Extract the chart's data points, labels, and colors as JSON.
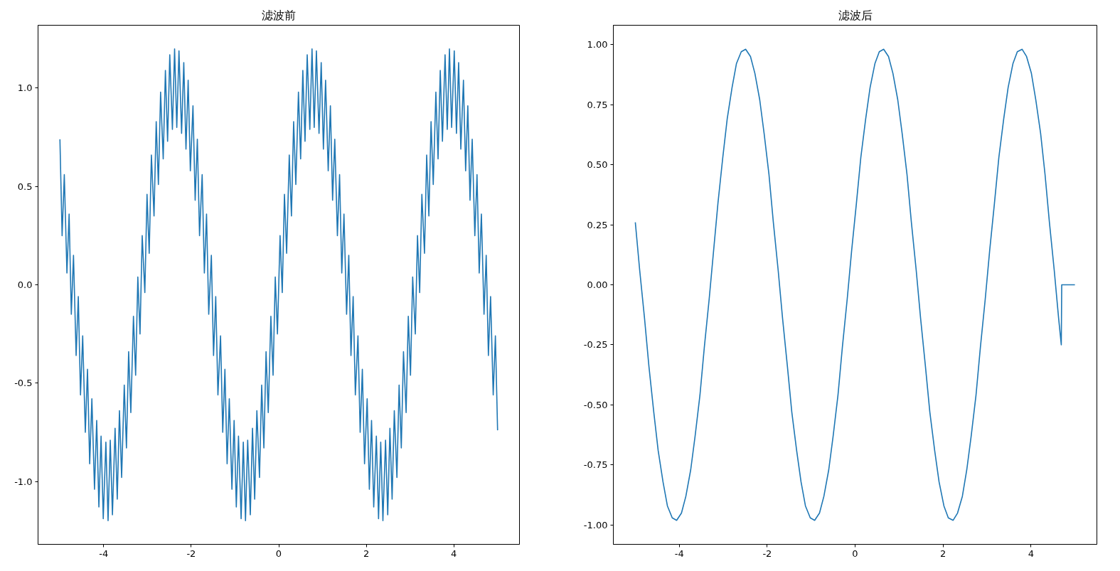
{
  "chart_data": [
    {
      "type": "line",
      "title": "滤波前",
      "xlim": [
        -5.5,
        5.5
      ],
      "ylim": [
        -1.32,
        1.32
      ],
      "xticks": [
        -4,
        -2,
        0,
        2,
        4
      ],
      "yticks": [
        {
          "value": -1.0,
          "label": "-1.0"
        },
        {
          "value": -0.5,
          "label": "-0.5"
        },
        {
          "value": 0.0,
          "label": "0.0"
        },
        {
          "value": 0.5,
          "label": "0.5"
        },
        {
          "value": 1.0,
          "label": "1.0"
        }
      ],
      "x": [
        -5.0,
        -4.95,
        -4.9,
        -4.84,
        -4.79,
        -4.74,
        -4.69,
        -4.63,
        -4.58,
        -4.53,
        -4.48,
        -4.42,
        -4.37,
        -4.32,
        -4.27,
        -4.21,
        -4.16,
        -4.11,
        -4.06,
        -4.01,
        -3.95,
        -3.9,
        -3.85,
        -3.8,
        -3.74,
        -3.69,
        -3.64,
        -3.59,
        -3.53,
        -3.48,
        -3.43,
        -3.38,
        -3.32,
        -3.27,
        -3.22,
        -3.17,
        -3.12,
        -3.06,
        -3.01,
        -2.96,
        -2.91,
        -2.85,
        -2.8,
        -2.75,
        -2.7,
        -2.64,
        -2.59,
        -2.54,
        -2.49,
        -2.43,
        -2.38,
        -2.33,
        -2.28,
        -2.22,
        -2.17,
        -2.12,
        -2.07,
        -2.02,
        -1.96,
        -1.91,
        -1.86,
        -1.81,
        -1.75,
        -1.7,
        -1.65,
        -1.6,
        -1.54,
        -1.49,
        -1.44,
        -1.39,
        -1.33,
        -1.28,
        -1.23,
        -1.18,
        -1.13,
        -1.07,
        -1.02,
        -0.97,
        -0.92,
        -0.86,
        -0.81,
        -0.76,
        -0.71,
        -0.65,
        -0.6,
        -0.55,
        -0.5,
        -0.44,
        -0.39,
        -0.34,
        -0.29,
        -0.24,
        -0.18,
        -0.13,
        -0.08,
        -0.03,
        0.03,
        0.08,
        0.13,
        0.18,
        0.24,
        0.29,
        0.34,
        0.39,
        0.45,
        0.5,
        0.55,
        0.6,
        0.65,
        0.71,
        0.76,
        0.81,
        0.86,
        0.92,
        0.97,
        1.02,
        1.07,
        1.13,
        1.18,
        1.23,
        1.28,
        1.34,
        1.39,
        1.44,
        1.49,
        1.55,
        1.6,
        1.65,
        1.7,
        1.75,
        1.81,
        1.86,
        1.91,
        1.96,
        2.02,
        2.07,
        2.12,
        2.17,
        2.23,
        2.28,
        2.33,
        2.38,
        2.44,
        2.49,
        2.54,
        2.59,
        2.64,
        2.7,
        2.75,
        2.8,
        2.85,
        2.91,
        2.96,
        3.01,
        3.06,
        3.12,
        3.17,
        3.22,
        3.27,
        3.33,
        3.38,
        3.43,
        3.48,
        3.53,
        3.59,
        3.64,
        3.69,
        3.74,
        3.8,
        3.85,
        3.9,
        3.95,
        4.01,
        4.06,
        4.11,
        4.16,
        4.22,
        4.27,
        4.32,
        4.37,
        4.42,
        4.48,
        4.53,
        4.58,
        4.63,
        4.69,
        4.74,
        4.79,
        4.84,
        4.9,
        4.95,
        5.0
      ],
      "series": [
        {
          "color": "#1f77b4",
          "values": [
            0.74,
            0.25,
            0.56,
            0.06,
            0.36,
            -0.15,
            0.15,
            -0.36,
            -0.06,
            -0.56,
            -0.26,
            -0.75,
            -0.43,
            -0.91,
            -0.58,
            -1.04,
            -0.69,
            -1.13,
            -0.77,
            -1.19,
            -0.8,
            -1.2,
            -0.79,
            -1.17,
            -0.73,
            -1.09,
            -0.64,
            -0.98,
            -0.51,
            -0.83,
            -0.34,
            -0.65,
            -0.16,
            -0.46,
            0.04,
            -0.25,
            0.25,
            -0.04,
            0.46,
            0.16,
            0.66,
            0.35,
            0.83,
            0.51,
            0.98,
            0.64,
            1.09,
            0.73,
            1.17,
            0.79,
            1.2,
            0.8,
            1.19,
            0.77,
            1.13,
            0.69,
            1.04,
            0.58,
            0.91,
            0.43,
            0.74,
            0.25,
            0.56,
            0.06,
            0.36,
            -0.15,
            0.15,
            -0.36,
            -0.06,
            -0.56,
            -0.26,
            -0.75,
            -0.43,
            -0.91,
            -0.58,
            -1.04,
            -0.69,
            -1.13,
            -0.77,
            -1.19,
            -0.8,
            -1.2,
            -0.79,
            -1.17,
            -0.73,
            -1.09,
            -0.64,
            -0.98,
            -0.51,
            -0.83,
            -0.34,
            -0.65,
            -0.16,
            -0.46,
            0.04,
            -0.25,
            0.25,
            -0.04,
            0.46,
            0.16,
            0.66,
            0.35,
            0.83,
            0.51,
            0.98,
            0.64,
            1.09,
            0.73,
            1.17,
            0.79,
            1.2,
            0.8,
            1.19,
            0.77,
            1.13,
            0.69,
            1.04,
            0.58,
            0.91,
            0.43,
            0.74,
            0.25,
            0.56,
            0.06,
            0.36,
            -0.15,
            0.15,
            -0.36,
            -0.06,
            -0.56,
            -0.26,
            -0.75,
            -0.43,
            -0.91,
            -0.58,
            -1.04,
            -0.69,
            -1.13,
            -0.77,
            -1.19,
            -0.8,
            -1.2,
            -0.79,
            -1.17,
            -0.73,
            -1.09,
            -0.64,
            -0.98,
            -0.51,
            -0.83,
            -0.34,
            -0.65,
            -0.16,
            -0.46,
            0.04,
            -0.25,
            0.25,
            -0.04,
            0.46,
            0.16,
            0.66,
            0.35,
            0.83,
            0.51,
            0.98,
            0.64,
            1.09,
            0.73,
            1.17,
            0.79,
            1.2,
            0.8,
            1.19,
            0.77,
            1.13,
            0.69,
            1.04,
            0.58,
            0.91,
            0.43,
            0.74,
            0.25,
            0.56,
            0.06,
            0.36,
            -0.15,
            0.15,
            -0.36,
            -0.06,
            -0.56,
            -0.26,
            -0.74
          ]
        }
      ]
    },
    {
      "type": "line",
      "title": "滤波后",
      "xlim": [
        -5.5,
        5.5
      ],
      "ylim": [
        -1.08,
        1.08
      ],
      "xticks": [
        -4,
        -2,
        0,
        2,
        4
      ],
      "yticks": [
        {
          "value": -1.0,
          "label": "-1.00"
        },
        -0.75,
        {
          "value": -0.5,
          "label": "-0.50"
        },
        -0.25,
        {
          "value": 0.0,
          "label": "0.00"
        },
        0.25,
        {
          "value": 0.5,
          "label": "0.50"
        },
        0.75,
        {
          "value": 1.0,
          "label": "1.00"
        }
      ],
      "x": [
        -5.0,
        -4.9,
        -4.79,
        -4.69,
        -4.58,
        -4.48,
        -4.37,
        -4.27,
        -4.16,
        -4.06,
        -3.95,
        -3.85,
        -3.74,
        -3.64,
        -3.53,
        -3.43,
        -3.32,
        -3.22,
        -3.12,
        -3.01,
        -2.91,
        -2.8,
        -2.7,
        -2.59,
        -2.49,
        -2.38,
        -2.28,
        -2.17,
        -2.07,
        -1.96,
        -1.86,
        -1.75,
        -1.65,
        -1.54,
        -1.44,
        -1.33,
        -1.23,
        -1.13,
        -1.02,
        -0.92,
        -0.81,
        -0.71,
        -0.6,
        -0.5,
        -0.39,
        -0.29,
        -0.18,
        -0.08,
        0.03,
        0.13,
        0.24,
        0.34,
        0.45,
        0.55,
        0.65,
        0.76,
        0.86,
        0.97,
        1.07,
        1.18,
        1.28,
        1.39,
        1.49,
        1.6,
        1.7,
        1.81,
        1.91,
        2.02,
        2.12,
        2.23,
        2.33,
        2.44,
        2.54,
        2.64,
        2.75,
        2.85,
        2.96,
        3.06,
        3.17,
        3.27,
        3.38,
        3.48,
        3.59,
        3.69,
        3.8,
        3.9,
        4.01,
        4.11,
        4.22,
        4.32,
        4.42,
        4.53,
        4.63,
        4.69,
        4.7,
        5.0
      ],
      "series": [
        {
          "color": "#1f77b4",
          "values": [
            0.26,
            0.06,
            -0.14,
            -0.34,
            -0.53,
            -0.69,
            -0.82,
            -0.92,
            -0.97,
            -0.98,
            -0.95,
            -0.88,
            -0.77,
            -0.63,
            -0.46,
            -0.26,
            -0.06,
            0.14,
            0.34,
            0.53,
            0.69,
            0.82,
            0.92,
            0.97,
            0.98,
            0.95,
            0.88,
            0.77,
            0.63,
            0.46,
            0.26,
            0.06,
            -0.14,
            -0.34,
            -0.53,
            -0.69,
            -0.82,
            -0.92,
            -0.97,
            -0.98,
            -0.95,
            -0.88,
            -0.77,
            -0.63,
            -0.46,
            -0.26,
            -0.06,
            0.14,
            0.34,
            0.53,
            0.69,
            0.82,
            0.92,
            0.97,
            0.98,
            0.95,
            0.88,
            0.77,
            0.63,
            0.46,
            0.26,
            0.06,
            -0.14,
            -0.34,
            -0.53,
            -0.69,
            -0.82,
            -0.92,
            -0.97,
            -0.98,
            -0.95,
            -0.88,
            -0.77,
            -0.63,
            -0.46,
            -0.26,
            -0.06,
            0.14,
            0.34,
            0.53,
            0.69,
            0.82,
            0.92,
            0.97,
            0.98,
            0.95,
            0.88,
            0.77,
            0.63,
            0.46,
            0.26,
            0.06,
            -0.14,
            -0.25,
            0.0,
            0.0
          ]
        }
      ]
    }
  ]
}
